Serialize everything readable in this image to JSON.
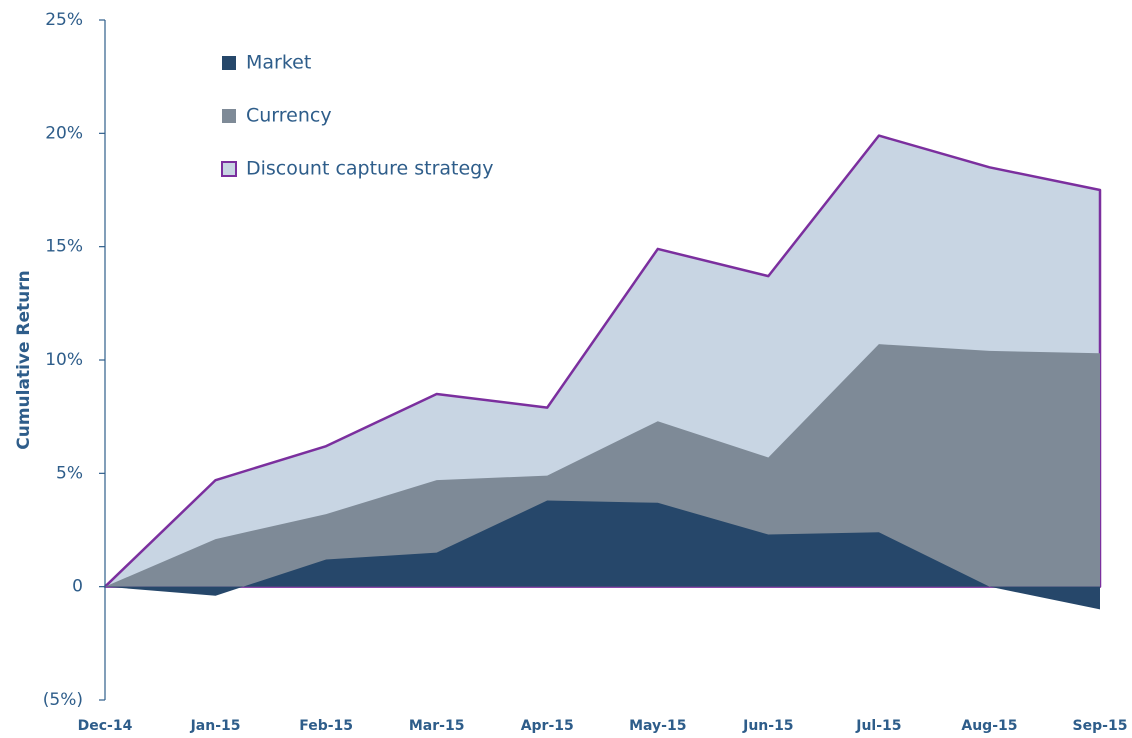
{
  "chart_data": {
    "type": "area",
    "y_axis_label": "Cumulative Return",
    "categories": [
      "Dec-14",
      "Jan-15",
      "Feb-15",
      "Mar-15",
      "Apr-15",
      "May-15",
      "Jun-15",
      "Jul-15",
      "Aug-15",
      "Sep-15"
    ],
    "series": [
      {
        "name": "Market",
        "color": "#26476a",
        "values": [
          0,
          -0.4,
          1.2,
          1.5,
          3.8,
          3.7,
          2.3,
          2.4,
          0,
          -1.0
        ]
      },
      {
        "name": "Currency",
        "color": "#7e8a97",
        "values": [
          0,
          2.1,
          3.2,
          4.7,
          4.9,
          7.3,
          5.7,
          10.7,
          10.4,
          10.3
        ]
      },
      {
        "name": "Discount capture strategy",
        "color": "#c8d5e3",
        "outline_color": "#7b2f9e",
        "values": [
          0,
          4.7,
          6.2,
          8.5,
          7.9,
          14.9,
          13.7,
          19.9,
          18.5,
          17.5
        ]
      }
    ],
    "ylim": [
      -5,
      25
    ],
    "yticks": [
      {
        "value": -5,
        "label": "(5%)"
      },
      0,
      {
        "value": 5,
        "label": "5%"
      },
      {
        "value": 10,
        "label": "10%"
      },
      {
        "value": 15,
        "label": "15%"
      },
      {
        "value": 20,
        "label": "20%"
      },
      {
        "value": 25,
        "label": "25%"
      }
    ],
    "legend": "upper left",
    "grid": false
  }
}
